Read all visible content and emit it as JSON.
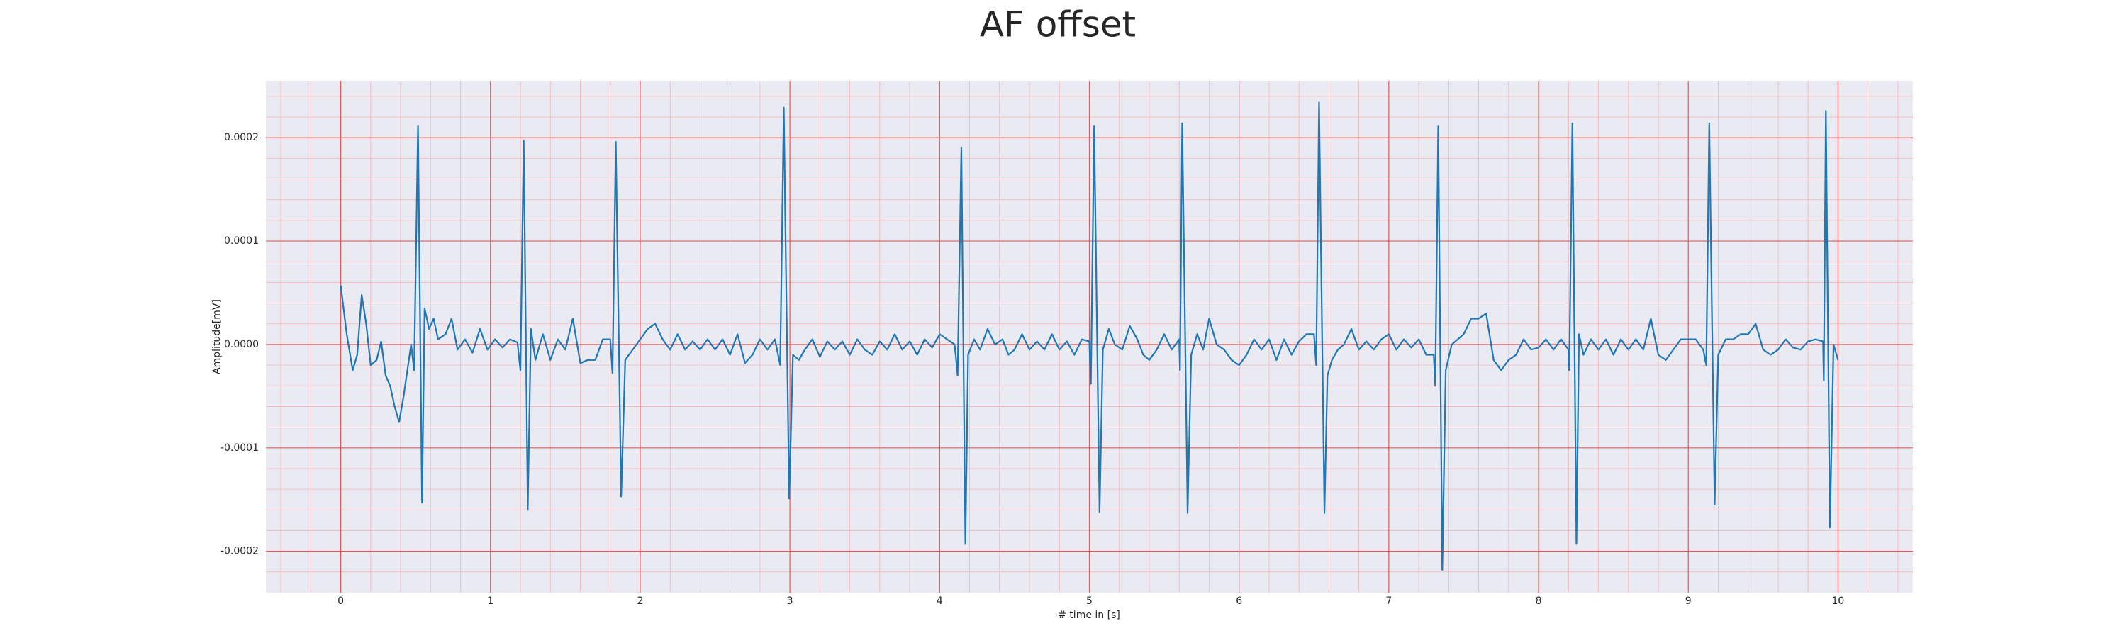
{
  "chart_data": {
    "type": "line",
    "title": "AF offset",
    "xlabel": "# time in [s]",
    "ylabel": "Amplitude[mV]",
    "color": "#1f77b4",
    "xlim": [
      -0.5,
      10.5
    ],
    "ylim": [
      -0.00024,
      0.000255
    ],
    "xticks": [
      0,
      1,
      2,
      3,
      4,
      5,
      6,
      7,
      8,
      9,
      10
    ],
    "yticks": [
      -0.0002,
      -0.0001,
      {
        "value": 0,
        "label": "0.0000"
      },
      0.0001,
      0.0002
    ],
    "grid": true,
    "minor_grid": true,
    "x": [
      0,
      0.04,
      0.08,
      0.11,
      0.14,
      0.17,
      0.2,
      0.24,
      0.27,
      0.3,
      0.33,
      0.36,
      0.39,
      0.42,
      0.45,
      0.47,
      0.49,
      0.516,
      0.543,
      0.56,
      0.59,
      0.62,
      0.65,
      0.7,
      0.74,
      0.78,
      0.83,
      0.88,
      0.93,
      0.98,
      1.03,
      1.08,
      1.13,
      1.18,
      1.2,
      1.222,
      1.249,
      1.27,
      1.3,
      1.35,
      1.4,
      1.45,
      1.5,
      1.55,
      1.6,
      1.65,
      1.7,
      1.75,
      1.8,
      1.815,
      1.837,
      1.873,
      1.9,
      1.95,
      2.0,
      2.05,
      2.1,
      2.15,
      2.2,
      2.25,
      2.3,
      2.35,
      2.4,
      2.45,
      2.5,
      2.55,
      2.6,
      2.65,
      2.7,
      2.75,
      2.8,
      2.85,
      2.9,
      2.935,
      2.959,
      2.995,
      3.02,
      3.06,
      3.1,
      3.15,
      3.2,
      3.25,
      3.3,
      3.35,
      3.4,
      3.45,
      3.5,
      3.55,
      3.6,
      3.65,
      3.7,
      3.75,
      3.8,
      3.85,
      3.9,
      3.95,
      4.0,
      4.05,
      4.1,
      4.12,
      4.145,
      4.172,
      4.19,
      4.23,
      4.27,
      4.32,
      4.37,
      4.42,
      4.46,
      4.5,
      4.55,
      4.6,
      4.65,
      4.7,
      4.75,
      4.8,
      4.85,
      4.9,
      4.95,
      5.0,
      5.01,
      5.032,
      5.068,
      5.09,
      5.13,
      5.17,
      5.22,
      5.27,
      5.32,
      5.36,
      5.4,
      5.45,
      5.5,
      5.55,
      5.6,
      5.605,
      5.62,
      5.656,
      5.68,
      5.72,
      5.76,
      5.8,
      5.85,
      5.9,
      5.95,
      6.0,
      6.05,
      6.1,
      6.15,
      6.2,
      6.25,
      6.3,
      6.35,
      6.4,
      6.45,
      6.5,
      6.515,
      6.534,
      6.57,
      6.59,
      6.62,
      6.66,
      6.7,
      6.75,
      6.8,
      6.85,
      6.9,
      6.95,
      7.0,
      7.05,
      7.1,
      7.15,
      7.2,
      7.25,
      7.3,
      7.31,
      7.33,
      7.357,
      7.38,
      7.42,
      7.46,
      7.5,
      7.55,
      7.6,
      7.65,
      7.7,
      7.75,
      7.8,
      7.85,
      7.9,
      7.95,
      8.0,
      8.05,
      8.1,
      8.15,
      8.2,
      8.205,
      8.226,
      8.253,
      8.27,
      8.3,
      8.35,
      8.4,
      8.45,
      8.5,
      8.55,
      8.6,
      8.65,
      8.7,
      8.75,
      8.8,
      8.85,
      8.9,
      8.95,
      9.0,
      9.05,
      9.1,
      9.12,
      9.14,
      9.176,
      9.2,
      9.25,
      9.3,
      9.35,
      9.4,
      9.45,
      9.5,
      9.55,
      9.6,
      9.65,
      9.7,
      9.75,
      9.8,
      9.85,
      9.9,
      9.905,
      9.919,
      9.946,
      9.97,
      10.0
    ],
    "values": [
      5.7e-05,
      1e-05,
      -2.5e-05,
      -1e-05,
      4.8e-05,
      2e-05,
      -2e-05,
      -1.5e-05,
      3e-06,
      -3e-05,
      -4e-05,
      -6e-05,
      -7.5e-05,
      -5e-05,
      -2e-05,
      0,
      -2.5e-05,
      0.000211,
      -0.000153,
      3.5e-05,
      1.5e-05,
      2.5e-05,
      5e-06,
      1e-05,
      2.5e-05,
      -5e-06,
      5e-06,
      -8e-06,
      1.5e-05,
      -5e-06,
      5e-06,
      -3e-06,
      5e-06,
      2e-06,
      -2.5e-05,
      0.000197,
      -0.00016,
      1.5e-05,
      -1.5e-05,
      1e-05,
      -1.5e-05,
      5e-06,
      -5e-06,
      2.5e-05,
      -1.8e-05,
      -1.5e-05,
      -1.5e-05,
      5e-06,
      5e-06,
      -2.8e-05,
      0.000196,
      -0.000147,
      -1.5e-05,
      -5e-06,
      5e-06,
      1.5e-05,
      2e-05,
      5e-06,
      -5e-06,
      1e-05,
      -5e-06,
      3e-06,
      -5e-06,
      5e-06,
      -5e-06,
      5e-06,
      -1e-05,
      1e-05,
      -1.8e-05,
      -1e-05,
      5e-06,
      -5e-06,
      5e-06,
      -2e-05,
      0.000229,
      -0.000149,
      -1e-05,
      -1.5e-05,
      -5e-06,
      5e-06,
      -1.2e-05,
      3e-06,
      -5e-06,
      3e-06,
      -1e-05,
      5e-06,
      -5e-06,
      -1e-05,
      3e-06,
      -5e-06,
      1e-05,
      -5e-06,
      3e-06,
      -1e-05,
      5e-06,
      -3e-06,
      1e-05,
      5e-06,
      0,
      -3e-05,
      0.00019,
      -0.000193,
      -1e-05,
      5e-06,
      -5e-06,
      1.5e-05,
      0,
      5e-06,
      -1e-05,
      -5e-06,
      1e-05,
      -5e-06,
      3e-06,
      -5e-06,
      1e-05,
      -5e-06,
      3e-06,
      -1e-05,
      5e-06,
      3e-06,
      -3.8e-05,
      0.000211,
      -0.000162,
      -5e-06,
      1.5e-05,
      0,
      -5e-06,
      1.8e-05,
      5e-06,
      -1e-05,
      -1.5e-05,
      -5e-06,
      1e-05,
      -5e-06,
      5e-06,
      -2.5e-05,
      0.000214,
      -0.000163,
      -1e-05,
      1e-05,
      -5e-06,
      2.5e-05,
      0,
      -5e-06,
      -1.5e-05,
      -2e-05,
      -1e-05,
      5e-06,
      -5e-06,
      5e-06,
      -1.5e-05,
      5e-06,
      -1e-05,
      3e-06,
      1e-05,
      1e-05,
      -2e-05,
      0.000234,
      -0.000163,
      -3e-05,
      -1.5e-05,
      -5e-06,
      0,
      1.5e-05,
      -5e-06,
      3e-06,
      -5e-06,
      5e-06,
      1e-05,
      -5e-06,
      5e-06,
      -3e-06,
      5e-06,
      -1e-05,
      -1e-05,
      -4e-05,
      0.000211,
      -0.000218,
      -2.5e-05,
      0,
      5e-06,
      1e-05,
      2.5e-05,
      2.5e-05,
      3e-05,
      -1.5e-05,
      -2.5e-05,
      -1.5e-05,
      -1e-05,
      5e-06,
      -5e-06,
      -3e-06,
      5e-06,
      -5e-06,
      5e-06,
      -5e-06,
      -2.5e-05,
      0.000214,
      -0.000193,
      1e-05,
      -1e-05,
      5e-06,
      -5e-06,
      5e-06,
      -1e-05,
      5e-06,
      -5e-06,
      5e-06,
      -5e-06,
      2.5e-05,
      -1e-05,
      -1.5e-05,
      -5e-06,
      5e-06,
      5e-06,
      5e-06,
      -5e-06,
      -2e-05,
      0.000214,
      -0.000155,
      -1e-05,
      5e-06,
      5e-06,
      1e-05,
      1e-05,
      2e-05,
      -5e-06,
      -1e-05,
      -5e-06,
      5e-06,
      -3e-06,
      -5e-06,
      3e-06,
      5e-06,
      3e-06,
      -3.5e-05,
      0.000226,
      -0.000177,
      0,
      -1.5e-05
    ]
  }
}
